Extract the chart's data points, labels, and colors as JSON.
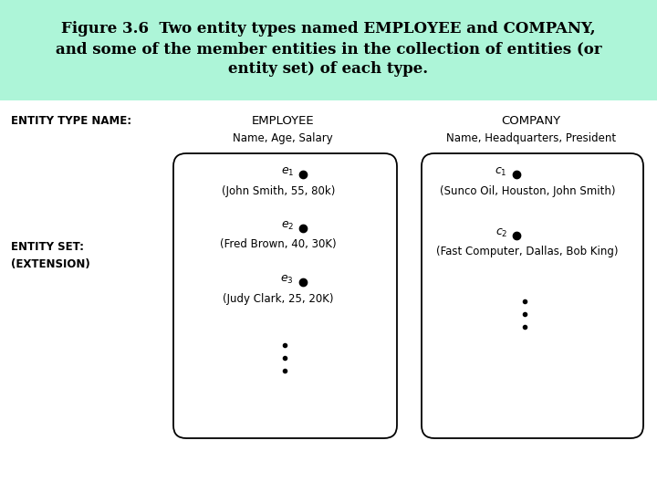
{
  "title_line1": "Figure 3.6  Two entity types named EMPLOYEE and COMPANY,",
  "title_line2": "and some of the member entities in the collection of entities (or",
  "title_line3": "entity set) of each type.",
  "title_bg_color": "#adf5d8",
  "bg_color": "#ffffff",
  "entity_type_name_label": "ENTITY TYPE NAME:",
  "entity_set_label": "ENTITY SET:",
  "extension_label": "(EXTENSION)",
  "emp_name": "EMPLOYEE",
  "emp_attrs": "Name, Age, Salary",
  "comp_name": "COMPANY",
  "comp_attrs": "Name, Headquarters, President",
  "emp_entities": [
    {
      "label": "e",
      "sub": "1",
      "value": "(John Smith, 55, 80k)"
    },
    {
      "label": "e",
      "sub": "2",
      "value": "(Fred Brown, 40, 30K)"
    },
    {
      "label": "e",
      "sub": "3",
      "value": "(Judy Clark, 25, 20K)"
    }
  ],
  "comp_entities": [
    {
      "label": "c",
      "sub": "1",
      "value": "(Sunco Oil, Houston, John Smith)"
    },
    {
      "label": "c",
      "sub": "2",
      "value": "(Fast Computer, Dallas, Bob King)"
    }
  ]
}
